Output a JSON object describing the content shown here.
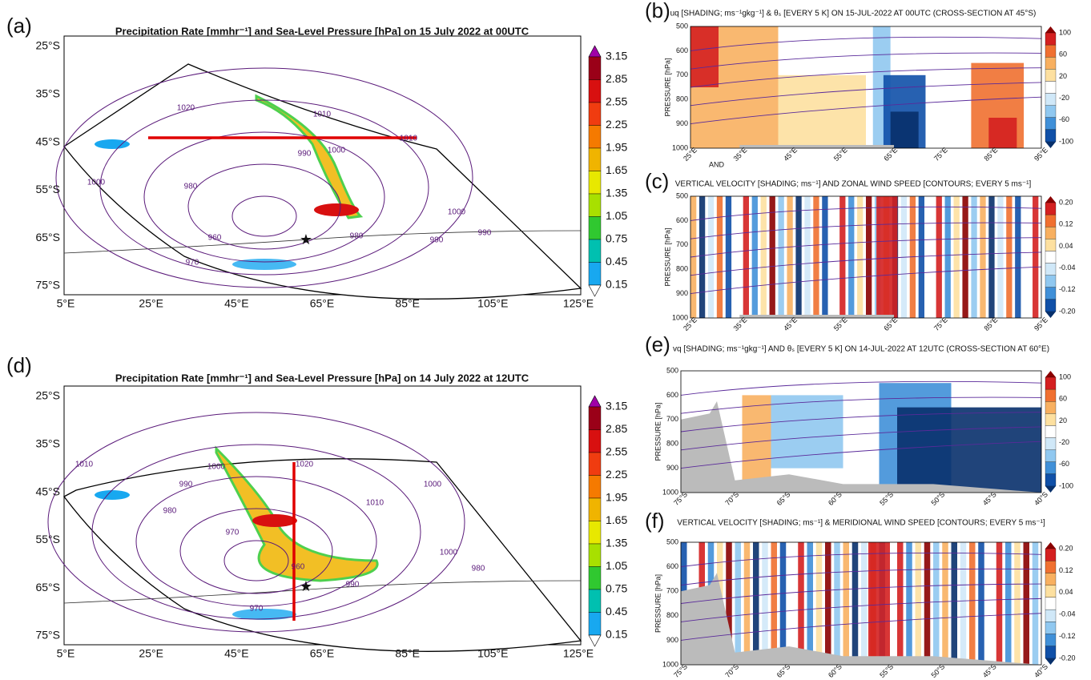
{
  "maps": [
    {
      "label": "(a)",
      "title": "Precipitation Rate [mmhr⁻¹] and Sea-Level Pressure [hPa] on 15 July 2022 at 00UTC",
      "lat_labels": [
        "25°S",
        "35°S",
        "45°S",
        "55°S",
        "65°S",
        "75°S"
      ],
      "lon_labels": [
        "5°E",
        "25°E",
        "45°E",
        "65°E",
        "85°E",
        "105°E",
        "125°E"
      ],
      "colorbar": [
        "3.15",
        "2.85",
        "2.55",
        "2.25",
        "1.95",
        "1.65",
        "1.35",
        "1.05",
        "0.75",
        "0.45",
        "0.15"
      ],
      "contour_labels": [
        "1020",
        "1010",
        "990",
        "1000",
        "1000",
        "980",
        "960",
        "970",
        "980",
        "990",
        "990",
        "1000",
        "1010"
      ]
    },
    {
      "label": "(d)",
      "title": "Precipitation Rate [mmhr⁻¹] and Sea-Level Pressure [hPa] on 14 July 2022 at 12UTC",
      "lat_labels": [
        "25°S",
        "35°S",
        "45°S",
        "55°S",
        "65°S",
        "75°S"
      ],
      "lon_labels": [
        "5°E",
        "25°E",
        "45°E",
        "65°E",
        "85°E",
        "105°E",
        "125°E"
      ],
      "colorbar": [
        "3.15",
        "2.85",
        "2.55",
        "2.25",
        "1.95",
        "1.65",
        "1.35",
        "1.05",
        "0.75",
        "0.45",
        "0.15"
      ],
      "contour_labels": [
        "1010",
        "1000",
        "990",
        "980",
        "970",
        "1020",
        "1010",
        "1000",
        "960",
        "990",
        "980",
        "970",
        "1000"
      ]
    }
  ],
  "sections": [
    {
      "label": "(b)",
      "title": "uq [SHADING; ms⁻¹gkg⁻¹] & θₛ [EVERY 5 K] ON 15-JUL-2022 AT 00UTC (CROSS-SECTION AT 45°S)",
      "y_axis": "PRESSURE [hPa]",
      "y_labels": [
        "500",
        "600",
        "700",
        "800",
        "900",
        "1000"
      ],
      "x_labels": [
        "25°E",
        "35°E",
        "45°E",
        "55°E",
        "65°E",
        "75°E",
        "85°E",
        "95°E"
      ],
      "colorbar": [
        "100",
        "60",
        "20",
        "-20",
        "-60",
        "-100"
      ],
      "note": "AND"
    },
    {
      "label": "(c)",
      "title": "VERTICAL VELOCITY [SHADING; ms⁻¹]  AND  ZONAL WIND SPEED [CONTOURS; EVERY 5 ms⁻¹]",
      "y_axis": "PRESSURE [hPa]",
      "y_labels": [
        "500",
        "600",
        "700",
        "800",
        "900",
        "1000"
      ],
      "x_labels": [
        "25°E",
        "35°E",
        "45°E",
        "55°E",
        "65°E",
        "75°E",
        "85°E",
        "95°E"
      ],
      "colorbar": [
        "0.20",
        "0.12",
        "0.04",
        "-0.04",
        "-0.12",
        "-0.20"
      ]
    },
    {
      "label": "(e)",
      "title": "vq [SHADING; ms⁻¹gkg⁻¹] AND θₛ [EVERY 5 K] ON 14-JUL-2022 AT 12UTC (CROSS-SECTION AT 60°E)",
      "y_axis": "PRESSURE [hPa]",
      "y_labels": [
        "500",
        "600",
        "700",
        "800",
        "900",
        "1000"
      ],
      "x_labels": [
        "75°S",
        "70°S",
        "65°S",
        "60°S",
        "55°S",
        "50°S",
        "45°S",
        "40°S"
      ],
      "colorbar": [
        "100",
        "60",
        "20",
        "-20",
        "-60",
        "-100"
      ]
    },
    {
      "label": "(f)",
      "title": "VERTICAL VELOCITY [SHADING; ms⁻¹] & MERIDIONAL WIND SPEED [CONTOURS; EVERY 5 ms⁻¹]",
      "y_axis": "PRESSURE [hPa]",
      "y_labels": [
        "500",
        "600",
        "700",
        "800",
        "900",
        "1000"
      ],
      "x_labels": [
        "75°S",
        "70°S",
        "65°S",
        "60°S",
        "55°S",
        "50°S",
        "45°S",
        "40°S"
      ],
      "colorbar": [
        "0.20",
        "0.12",
        "0.04",
        "-0.04",
        "-0.12",
        "-0.20"
      ]
    }
  ]
}
